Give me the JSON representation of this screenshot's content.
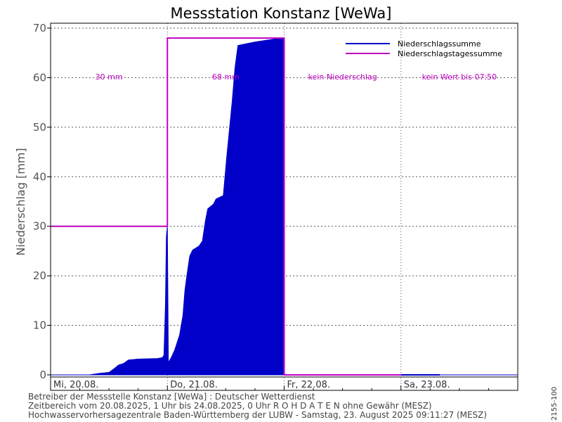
{
  "chart_data": {
    "type": "area",
    "title": "Messstation Konstanz [WeWa]",
    "ylabel": "Niederschlag [mm]",
    "ylim": [
      0,
      70
    ],
    "y_ticks": [
      "0",
      "10",
      "20",
      "30",
      "40",
      "50",
      "60",
      "70"
    ],
    "x_unit": "hours since 20.08.2025 00:00",
    "xlim": [
      0,
      96
    ],
    "day_labels": [
      "Mi, 20.08.",
      "Do, 21.08.",
      "Fr, 22.08.",
      "Sa, 23.08."
    ],
    "legend": {
      "placement": "top-right",
      "items": [
        "Niederschlagssumme",
        "Niederschlagstagessumme"
      ]
    },
    "colors": {
      "sum": "#0000c8",
      "daily": "#c000c0"
    },
    "grid": true,
    "annotations": [
      "30 mm",
      "68 mm",
      "kein Niederschlag",
      "kein Wert bis 07:50"
    ],
    "series_cumulative": [
      [
        0,
        0
      ],
      [
        8,
        0
      ],
      [
        10,
        0.3
      ],
      [
        12,
        0.5
      ],
      [
        13,
        1.2
      ],
      [
        14,
        2.0
      ],
      [
        15,
        2.3
      ],
      [
        16,
        3.0
      ],
      [
        18,
        3.2
      ],
      [
        22,
        3.3
      ],
      [
        23,
        3.5
      ],
      [
        23.3,
        4.0
      ],
      [
        23.6,
        14
      ],
      [
        23.8,
        28
      ],
      [
        24,
        30
      ],
      [
        24.2,
        2.5
      ],
      [
        24.8,
        3.5
      ],
      [
        25.5,
        5
      ],
      [
        26.5,
        8
      ],
      [
        27.2,
        12
      ],
      [
        27.6,
        17
      ],
      [
        28.0,
        20
      ],
      [
        28.6,
        24
      ],
      [
        29.2,
        25.2
      ],
      [
        30.5,
        26
      ],
      [
        31.2,
        27
      ],
      [
        31.8,
        31
      ],
      [
        32.3,
        33.5
      ],
      [
        33.5,
        34.5
      ],
      [
        34.0,
        35.5
      ],
      [
        35.5,
        36.2
      ],
      [
        36.2,
        44
      ],
      [
        36.8,
        50
      ],
      [
        37.3,
        55
      ],
      [
        37.9,
        62
      ],
      [
        38.5,
        66.5
      ],
      [
        40.0,
        66.8
      ],
      [
        42.0,
        67.2
      ],
      [
        44,
        67.5
      ],
      [
        46,
        67.8
      ],
      [
        47.5,
        68
      ],
      [
        48,
        68
      ],
      [
        48,
        0
      ],
      [
        96,
        0
      ]
    ],
    "daily_sums": [
      {
        "day": "20.08.",
        "value": 30
      },
      {
        "day": "21.08.",
        "value": 68
      },
      {
        "day": "22.08.",
        "value": 0
      }
    ]
  },
  "footer": {
    "line1": "Betreiber der Messstelle Konstanz [WeWa] : Deutscher Wetterdienst",
    "line2": "Zeitbereich vom 20.08.2025, 1 Uhr bis 24.08.2025, 0 Uhr    R O H D A T E N ohne Gewähr (MESZ)",
    "line3": "Hochwasservorhersagezentrale Baden-Württemberg der LUBW -  Samstag, 23. August 2025 09:11:27 (MESZ)"
  },
  "side_code": "2155-100"
}
